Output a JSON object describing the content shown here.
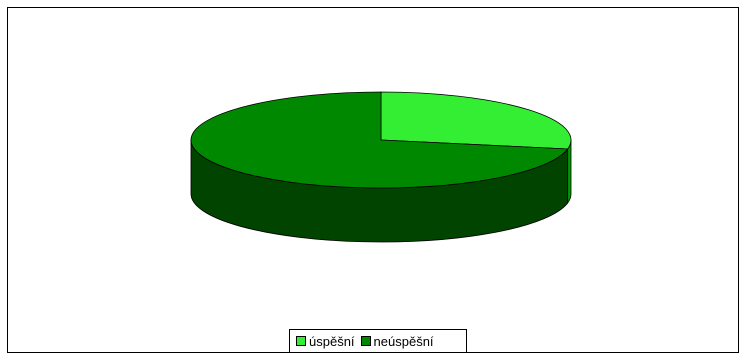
{
  "chart_data": {
    "type": "pie",
    "style": "3d",
    "categories": [
      "úspěšní",
      "neúspěšní"
    ],
    "values": [
      28,
      72
    ],
    "colors": [
      "#33ee33",
      "#008800"
    ],
    "side_colors": [
      "#009900",
      "#004400"
    ],
    "legend_position": "bottom",
    "title": ""
  }
}
